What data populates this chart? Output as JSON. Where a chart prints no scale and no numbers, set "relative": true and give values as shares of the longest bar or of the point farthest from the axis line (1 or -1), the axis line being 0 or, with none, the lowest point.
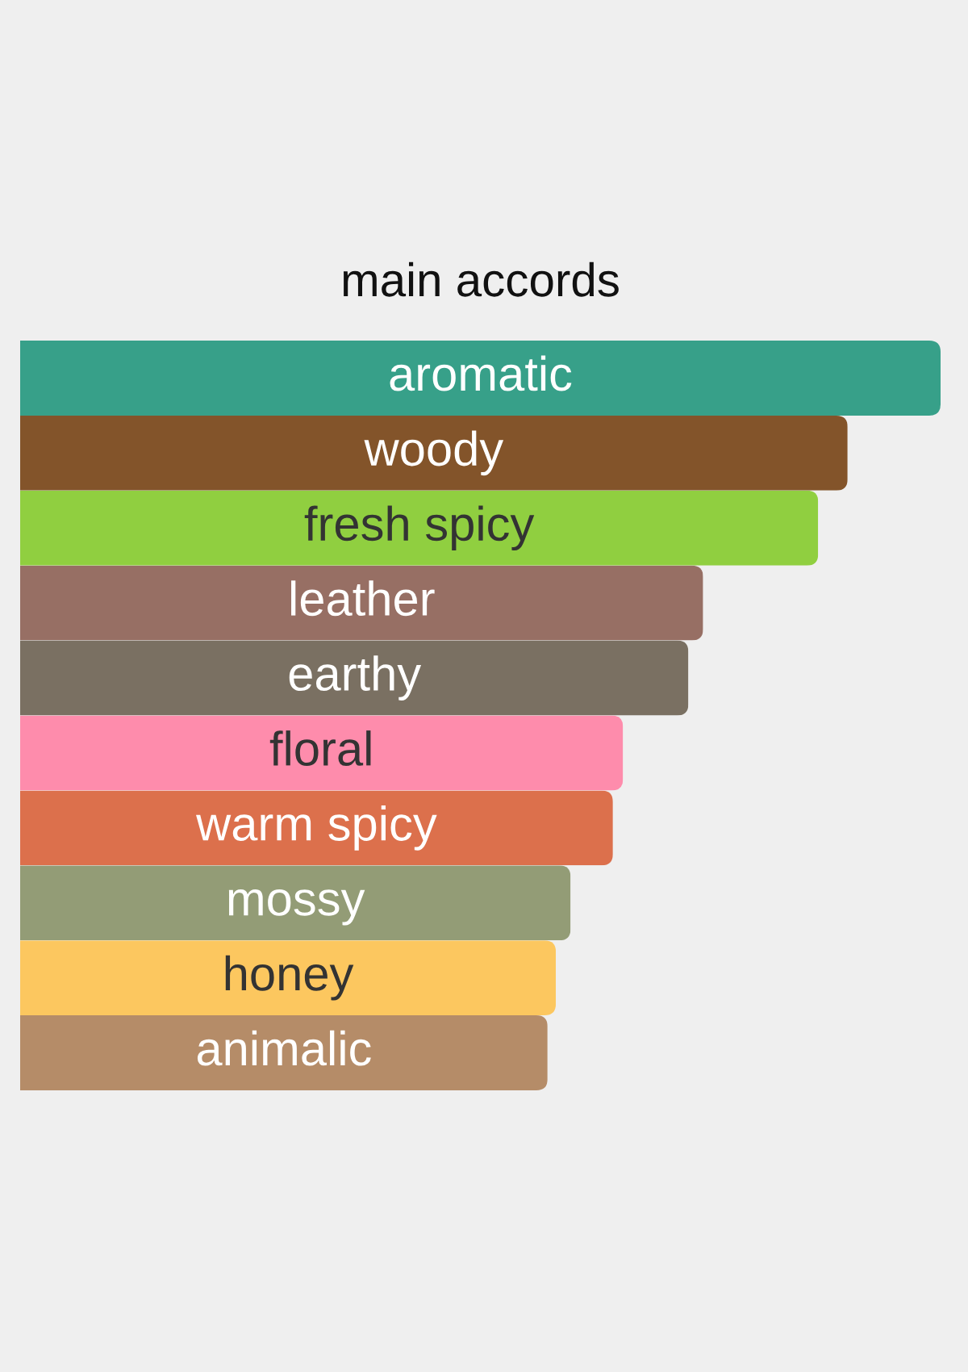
{
  "chart_data": {
    "type": "bar",
    "orientation": "horizontal",
    "relative": true,
    "title": "main accords",
    "categories": [
      "aromatic",
      "woody",
      "fresh spicy",
      "leather",
      "earthy",
      "floral",
      "warm spicy",
      "mossy",
      "honey",
      "animalic"
    ],
    "values": [
      1,
      0.899,
      0.867,
      0.742,
      0.726,
      0.655,
      0.644,
      0.598,
      0.582,
      0.573
    ],
    "colors": [
      "#37a089",
      "#83542a",
      "#90cf40",
      "#976f64",
      "#7a7062",
      "#fe8cac",
      "#dc704c",
      "#939c76",
      "#fcc75f",
      "#b58c68"
    ]
  }
}
